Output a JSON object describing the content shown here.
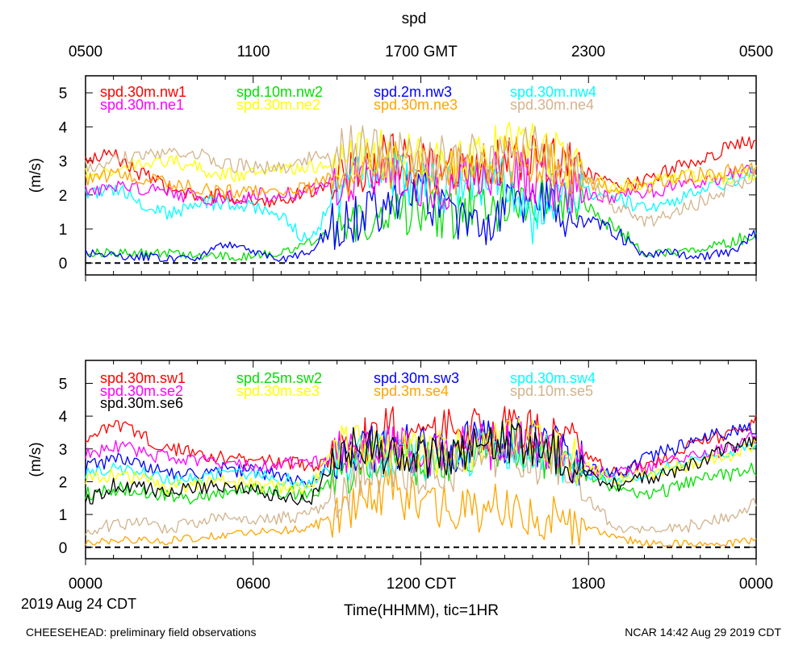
{
  "figure": {
    "title": "spd",
    "top_axis_labels": [
      "0500",
      "1100",
      "1700 GMT",
      "2300",
      "0500"
    ],
    "bottom_axis_labels": [
      "0000",
      "0600",
      "1200 CDT",
      "1800",
      "0000"
    ],
    "date_label": "2019 Aug 24 CDT",
    "xlabel": "Time(HHMM), tic=1HR",
    "footer_left": "CHEESEHEAD: preliminary field observations",
    "footer_right": "NCAR 14:42 Aug 29 2019 CDT"
  },
  "chart_data": [
    {
      "type": "line",
      "title": "spd",
      "xlabel": "Time(HHMM), tic=1HR",
      "ylabel": "(m/s)",
      "xlim": [
        0,
        24
      ],
      "ylim": [
        -0.35,
        5.5
      ],
      "yticks": [
        0,
        1,
        2,
        3,
        4,
        5
      ],
      "zero_line": true,
      "x": [
        0,
        1,
        2,
        3,
        4,
        5,
        6,
        7,
        8,
        9,
        10,
        11,
        12,
        13,
        14,
        15,
        16,
        17,
        18,
        19,
        20,
        21,
        22,
        23,
        24
      ],
      "series": [
        {
          "name": "spd.30m.nw1",
          "color": "#ff0000",
          "values": [
            3.0,
            3.2,
            2.6,
            2.2,
            1.9,
            2.0,
            1.8,
            1.9,
            2.1,
            2.5,
            2.7,
            3.2,
            2.8,
            2.6,
            2.7,
            3.0,
            3.1,
            2.9,
            2.6,
            2.2,
            2.4,
            2.8,
            3.0,
            3.4,
            3.6
          ]
        },
        {
          "name": "spd.10m.nw2",
          "color": "#00e000",
          "values": [
            0.3,
            0.3,
            0.3,
            0.3,
            0.2,
            0.2,
            0.2,
            0.3,
            0.6,
            1.0,
            1.4,
            1.5,
            1.6,
            1.4,
            1.5,
            1.7,
            1.8,
            1.9,
            1.6,
            1.0,
            0.3,
            0.3,
            0.4,
            0.6,
            0.8
          ]
        },
        {
          "name": "spd.2m.nw3",
          "color": "#0000ff",
          "values": [
            0.3,
            0.2,
            0.2,
            0.1,
            0.1,
            0.6,
            0.3,
            0.1,
            0.3,
            1.2,
            1.4,
            1.9,
            2.2,
            1.3,
            1.0,
            1.6,
            1.8,
            1.5,
            1.2,
            0.9,
            0.2,
            0.3,
            0.2,
            0.3,
            0.8
          ]
        },
        {
          "name": "spd.30m.nw4",
          "color": "#00ffff",
          "values": [
            2.0,
            2.2,
            1.8,
            1.4,
            1.7,
            1.8,
            1.7,
            1.4,
            0.6,
            2.0,
            2.8,
            2.6,
            2.3,
            2.1,
            2.4,
            2.6,
            1.2,
            2.3,
            2.1,
            1.9,
            1.6,
            1.8,
            2.2,
            2.4,
            2.7
          ]
        },
        {
          "name": "spd.30m.ne1",
          "color": "#ff00ff",
          "values": [
            2.1,
            2.3,
            2.2,
            2.1,
            1.9,
            1.9,
            2.0,
            2.0,
            2.1,
            2.4,
            2.6,
            2.6,
            2.4,
            2.3,
            2.6,
            2.8,
            2.4,
            2.2,
            2.0,
            1.9,
            2.1,
            2.2,
            2.4,
            2.6,
            2.8
          ]
        },
        {
          "name": "spd.30m.ne2",
          "color": "#ffff00",
          "values": [
            2.6,
            2.7,
            3.0,
            3.0,
            2.8,
            2.6,
            2.6,
            2.7,
            2.8,
            3.0,
            3.2,
            3.3,
            3.0,
            3.1,
            3.2,
            3.4,
            3.6,
            3.0,
            2.5,
            2.2,
            2.3,
            2.5,
            2.6,
            2.5,
            2.6
          ]
        },
        {
          "name": "spd.30m.ne3",
          "color": "#ffa500",
          "values": [
            2.4,
            2.6,
            2.5,
            2.3,
            2.2,
            2.1,
            2.2,
            2.1,
            2.2,
            2.6,
            2.8,
            2.9,
            2.8,
            2.7,
            2.8,
            3.0,
            3.1,
            2.9,
            2.4,
            2.1,
            2.2,
            2.5,
            2.6,
            2.7,
            2.8
          ]
        },
        {
          "name": "spd.30m.ne4",
          "color": "#d2b48c",
          "values": [
            2.8,
            3.0,
            3.2,
            3.3,
            3.2,
            2.9,
            2.8,
            2.8,
            3.1,
            3.2,
            3.4,
            3.2,
            3.0,
            3.0,
            3.1,
            3.2,
            3.3,
            3.0,
            2.5,
            1.6,
            1.2,
            1.5,
            1.8,
            2.2,
            2.6
          ]
        }
      ]
    },
    {
      "type": "line",
      "title": "",
      "xlabel": "Time(HHMM), tic=1HR",
      "ylabel": "(m/s)",
      "xlim": [
        0,
        24
      ],
      "ylim": [
        -0.35,
        5.7
      ],
      "yticks": [
        0,
        1,
        2,
        3,
        4,
        5
      ],
      "zero_line": true,
      "x": [
        0,
        1,
        2,
        3,
        4,
        5,
        6,
        7,
        8,
        9,
        10,
        11,
        12,
        13,
        14,
        15,
        16,
        17,
        18,
        19,
        20,
        21,
        22,
        23,
        24
      ],
      "series": [
        {
          "name": "spd.30m.sw1",
          "color": "#ff0000",
          "values": [
            3.4,
            3.8,
            3.4,
            3.0,
            2.9,
            2.7,
            2.6,
            2.6,
            2.5,
            2.6,
            3.2,
            3.6,
            3.4,
            3.5,
            3.6,
            3.7,
            3.6,
            3.3,
            2.7,
            2.2,
            2.5,
            2.8,
            3.2,
            3.4,
            3.9
          ]
        },
        {
          "name": "spd.25m.sw2",
          "color": "#00e000",
          "values": [
            1.6,
            1.8,
            1.7,
            1.6,
            1.5,
            1.6,
            1.8,
            1.7,
            1.6,
            2.0,
            2.6,
            2.8,
            2.6,
            2.7,
            2.8,
            3.0,
            2.8,
            2.6,
            2.2,
            1.8,
            1.6,
            1.8,
            2.1,
            2.2,
            2.4
          ]
        },
        {
          "name": "spd.30m.sw3",
          "color": "#0000ff",
          "values": [
            2.4,
            2.7,
            2.5,
            2.2,
            2.2,
            2.4,
            2.3,
            2.2,
            2.0,
            2.8,
            3.0,
            3.1,
            2.9,
            3.0,
            3.2,
            3.3,
            3.2,
            2.9,
            2.4,
            2.3,
            2.7,
            3.0,
            3.3,
            3.5,
            3.6
          ]
        },
        {
          "name": "spd.30m.sw4",
          "color": "#00ffff",
          "values": [
            2.2,
            2.4,
            2.3,
            2.0,
            2.1,
            2.3,
            2.2,
            2.1,
            2.0,
            2.6,
            2.8,
            2.9,
            2.6,
            2.7,
            2.9,
            3.1,
            2.9,
            2.6,
            2.2,
            2.1,
            2.3,
            2.5,
            2.7,
            2.9,
            3.2
          ]
        },
        {
          "name": "spd.30m.se2",
          "color": "#ff00ff",
          "values": [
            2.8,
            3.1,
            2.9,
            2.7,
            2.6,
            2.6,
            2.5,
            2.6,
            2.5,
            2.8,
            3.0,
            3.1,
            2.9,
            2.9,
            3.0,
            3.2,
            3.1,
            2.8,
            2.4,
            2.2,
            2.4,
            2.6,
            2.8,
            3.0,
            3.4
          ]
        },
        {
          "name": "spd.30m.se3",
          "color": "#ffff00",
          "values": [
            2.0,
            2.2,
            2.1,
            1.8,
            1.9,
            2.0,
            1.9,
            1.8,
            1.8,
            3.0,
            3.2,
            3.0,
            2.8,
            2.9,
            3.1,
            3.3,
            3.2,
            2.9,
            2.4,
            2.1,
            2.2,
            2.4,
            2.6,
            2.8,
            3.1
          ]
        },
        {
          "name": "spd.3m.se4",
          "color": "#ffa500",
          "values": [
            0.1,
            0.2,
            0.2,
            0.2,
            0.3,
            0.4,
            0.5,
            0.5,
            0.6,
            1.0,
            1.6,
            1.7,
            1.4,
            1.2,
            1.0,
            1.3,
            1.1,
            0.8,
            0.6,
            0.3,
            0.1,
            0.1,
            0.1,
            0.1,
            0.2
          ]
        },
        {
          "name": "spd.10m.se5",
          "color": "#d2b48c",
          "values": [
            0.4,
            0.7,
            0.7,
            0.6,
            0.8,
            0.9,
            0.8,
            0.9,
            1.0,
            1.6,
            2.2,
            2.5,
            2.3,
            2.4,
            2.6,
            2.8,
            2.7,
            2.3,
            1.5,
            0.6,
            0.5,
            0.6,
            0.7,
            0.9,
            1.4
          ]
        },
        {
          "name": "spd.30m.se6",
          "color": "#000000",
          "values": [
            1.4,
            1.9,
            1.8,
            1.7,
            1.8,
            1.9,
            1.7,
            1.6,
            1.4,
            2.8,
            3.0,
            2.9,
            2.7,
            2.8,
            3.0,
            3.2,
            3.1,
            2.8,
            2.2,
            1.9,
            2.1,
            2.3,
            2.6,
            3.0,
            3.3
          ]
        }
      ]
    }
  ]
}
